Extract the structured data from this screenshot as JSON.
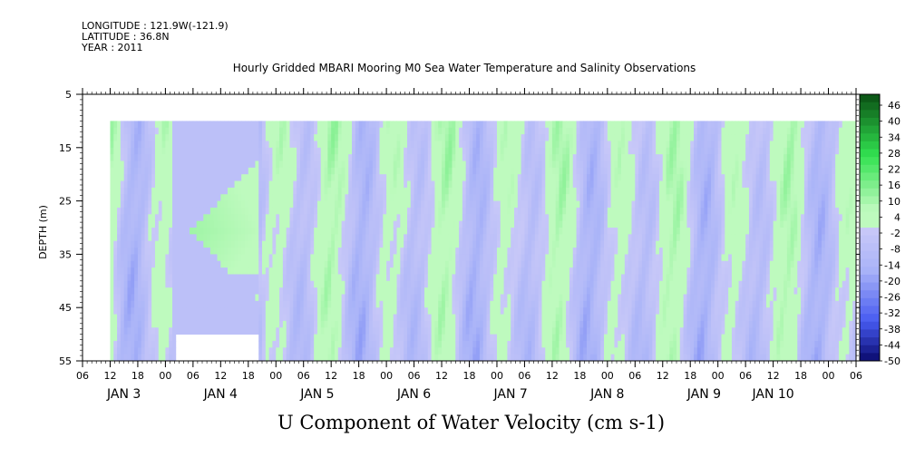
{
  "header": {
    "longitude": "LONGITUDE : 121.9W(-121.9)",
    "latitude": "LATITUDE : 36.8N",
    "year": "YEAR : 2011"
  },
  "chart_data": {
    "type": "heatmap",
    "title": "Hourly Gridded MBARI Mooring M0 Sea Water Temperature and Salinity Observations",
    "subtitle": "U Component of Water Velocity (cm s-1)",
    "ylabel": "DEPTH (m)",
    "ylim": [
      5,
      55
    ],
    "y_inverted": true,
    "y_ticks": [
      5,
      15,
      25,
      35,
      45,
      55
    ],
    "x_range_hours": [
      0,
      168
    ],
    "x_hour_ticks": [
      "06",
      "12",
      "18",
      "00",
      "06",
      "12",
      "18",
      "00",
      "06",
      "12",
      "18",
      "00",
      "06",
      "12",
      "18",
      "00",
      "06",
      "12",
      "18",
      "00",
      "06",
      "12",
      "18",
      "00",
      "06",
      "12",
      "18",
      "00",
      "06"
    ],
    "x_day_labels": [
      {
        "label": "JAN  3",
        "at_hour": 9
      },
      {
        "label": "JAN  4",
        "at_hour": 30
      },
      {
        "label": "JAN  5",
        "at_hour": 51
      },
      {
        "label": "JAN  6",
        "at_hour": 72
      },
      {
        "label": "JAN  7",
        "at_hour": 93
      },
      {
        "label": "JAN  8",
        "at_hour": 114
      },
      {
        "label": "JAN  9",
        "at_hour": 135
      },
      {
        "label": "JAN 10",
        "at_hour": 150
      }
    ],
    "data_extent": {
      "x_start": 6,
      "x_end": 168,
      "depth_top": 10,
      "depth_bottom": 55
    },
    "colorbar": {
      "labels": [
        "46",
        "40",
        "34",
        "28",
        "22",
        "16",
        "10",
        "4",
        "-2",
        "-8",
        "-14",
        "-20",
        "-26",
        "-32",
        "-38",
        "-44",
        "-50"
      ],
      "min": -50,
      "max": 52
    }
  }
}
